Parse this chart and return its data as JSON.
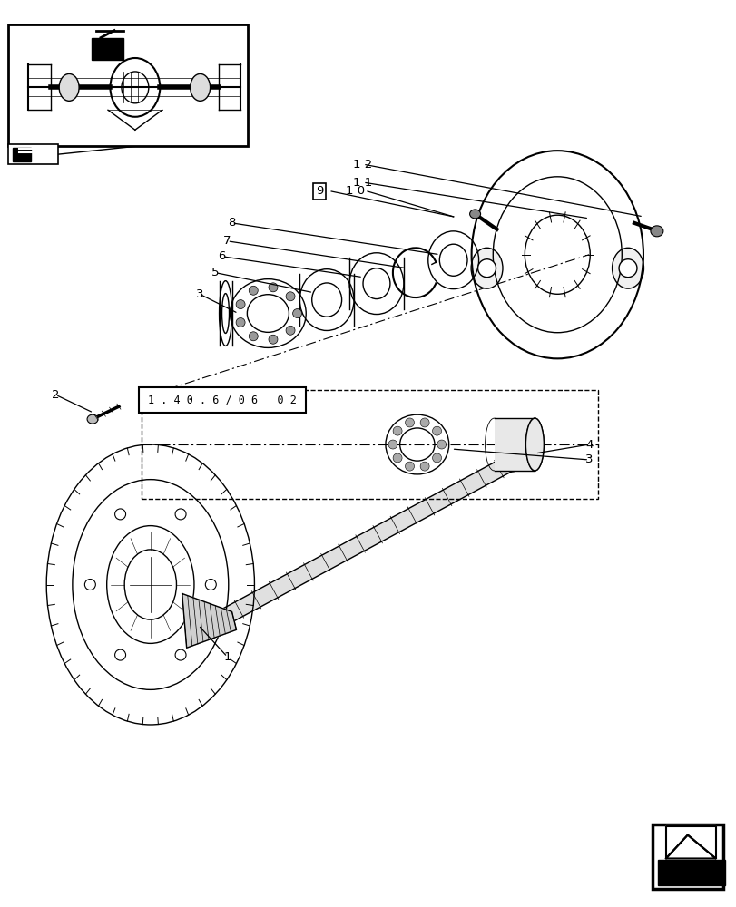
{
  "bg_color": "#ffffff",
  "line_color": "#000000",
  "fig_width": 8.12,
  "fig_height": 10.0,
  "dpi": 100
}
